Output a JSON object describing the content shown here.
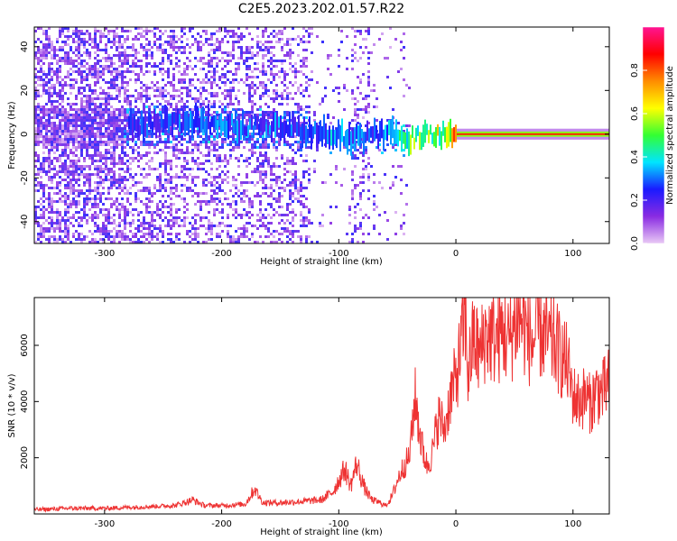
{
  "chart_data": [
    {
      "type": "heatmap",
      "title": "C2E5.2023.202.01.57.R22",
      "xlabel": "Height of straight line (km)",
      "ylabel": "Frequency (Hz)",
      "xlim": [
        -360,
        131
      ],
      "ylim": [
        -50,
        49
      ],
      "xticks": [
        -300,
        -200,
        -100,
        0,
        100
      ],
      "yticks": [
        -40,
        -20,
        0,
        20,
        40
      ],
      "colorbar": {
        "label": "Normalized spectral amplitude",
        "range": [
          0,
          1
        ],
        "ticks": [
          "0.0",
          "0.2",
          "0.4",
          "0.6",
          "0.8"
        ],
        "colormap": [
          "#e9c9f5",
          "#8a2be2",
          "#1a1aff",
          "#00e5ff",
          "#33ff33",
          "#ffff00",
          "#ff8c00",
          "#ff0000",
          "#ff1493"
        ]
      },
      "ridge": {
        "x": [
          -280,
          -250,
          -220,
          -190,
          -160,
          -130,
          -110,
          -90,
          -75,
          -60,
          -50,
          -40,
          -30,
          -20,
          -10,
          0,
          30,
          60,
          90,
          131
        ],
        "y": [
          4,
          5,
          6,
          4,
          3,
          2,
          1,
          -2,
          -1,
          0,
          1,
          -2,
          -1,
          0,
          0,
          0,
          0,
          0,
          0,
          0
        ],
        "amplitude": [
          0.25,
          0.3,
          0.3,
          0.3,
          0.3,
          0.3,
          0.35,
          0.3,
          0.3,
          0.35,
          0.4,
          0.5,
          0.55,
          0.6,
          0.65,
          0.9,
          0.9,
          0.9,
          0.9,
          0.9
        ]
      },
      "grid": false
    },
    {
      "type": "line",
      "title": "",
      "xlabel": "Height of straight line (km)",
      "ylabel": "SNR (10 * v/v)",
      "xlim": [
        -360,
        131
      ],
      "ylim": [
        0,
        7700
      ],
      "xticks": [
        -300,
        -200,
        -100,
        0,
        100
      ],
      "yticks": [
        2000,
        4000,
        6000
      ],
      "series": [
        {
          "color": "#ee3333",
          "x": [
            -360,
            -330,
            -300,
            -270,
            -240,
            -225,
            -215,
            -200,
            -180,
            -172,
            -165,
            -150,
            -130,
            -115,
            -105,
            -95,
            -90,
            -85,
            -78,
            -72,
            -65,
            -60,
            -55,
            -50,
            -45,
            -40,
            -35,
            -30,
            -25,
            -20,
            -15,
            -10,
            -5,
            0,
            5,
            8,
            10,
            15,
            20,
            25,
            30,
            35,
            40,
            45,
            50,
            55,
            60,
            65,
            70,
            75,
            80,
            85,
            90,
            95,
            100,
            105,
            110,
            115,
            120,
            125,
            131
          ],
          "y": [
            150,
            200,
            200,
            250,
            300,
            500,
            300,
            300,
            350,
            900,
            400,
            400,
            450,
            500,
            800,
            1600,
            1000,
            1800,
            900,
            500,
            400,
            300,
            600,
            1200,
            1700,
            2000,
            4200,
            2600,
            1700,
            2200,
            3500,
            3000,
            4200,
            4800,
            6200,
            7200,
            5000,
            6300,
            5600,
            6400,
            6300,
            6200,
            6500,
            6100,
            6800,
            7000,
            6500,
            6000,
            6600,
            6400,
            6100,
            6000,
            5600,
            5300,
            4200,
            4000,
            4200,
            3900,
            4400,
            4300,
            4700
          ]
        }
      ],
      "grid": false
    }
  ]
}
